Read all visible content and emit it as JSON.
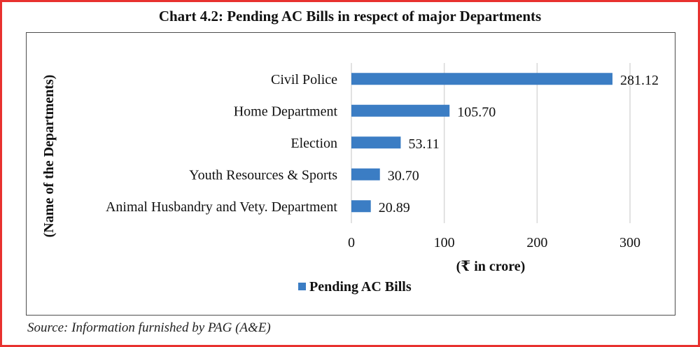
{
  "title": "Chart 4.2: Pending AC Bills in respect of major Departments",
  "source": "Source: Information furnished by PAG (A&E)",
  "chart_data": {
    "type": "bar",
    "orientation": "horizontal",
    "categories": [
      "Civil Police",
      "Home Department",
      "Election",
      "Youth Resources & Sports",
      "Animal Husbandry and Vety. Department"
    ],
    "series": [
      {
        "name": "Pending AC Bills",
        "values": [
          281.12,
          105.7,
          53.11,
          30.7,
          20.89
        ],
        "labels": [
          "281.12",
          "105.70",
          "53.11",
          "30.70",
          "20.89"
        ]
      }
    ],
    "xlabel": "(₹ in crore)",
    "ylabel": "(Name of the Departments)",
    "xlim": [
      0,
      300
    ],
    "xticks": [
      "0",
      "100",
      "200",
      "300"
    ],
    "grid": true,
    "legend": "bottom",
    "colors": {
      "bar": "#3b7dc4",
      "grid": "#d9d9d9",
      "frame": "#e8312f"
    }
  }
}
